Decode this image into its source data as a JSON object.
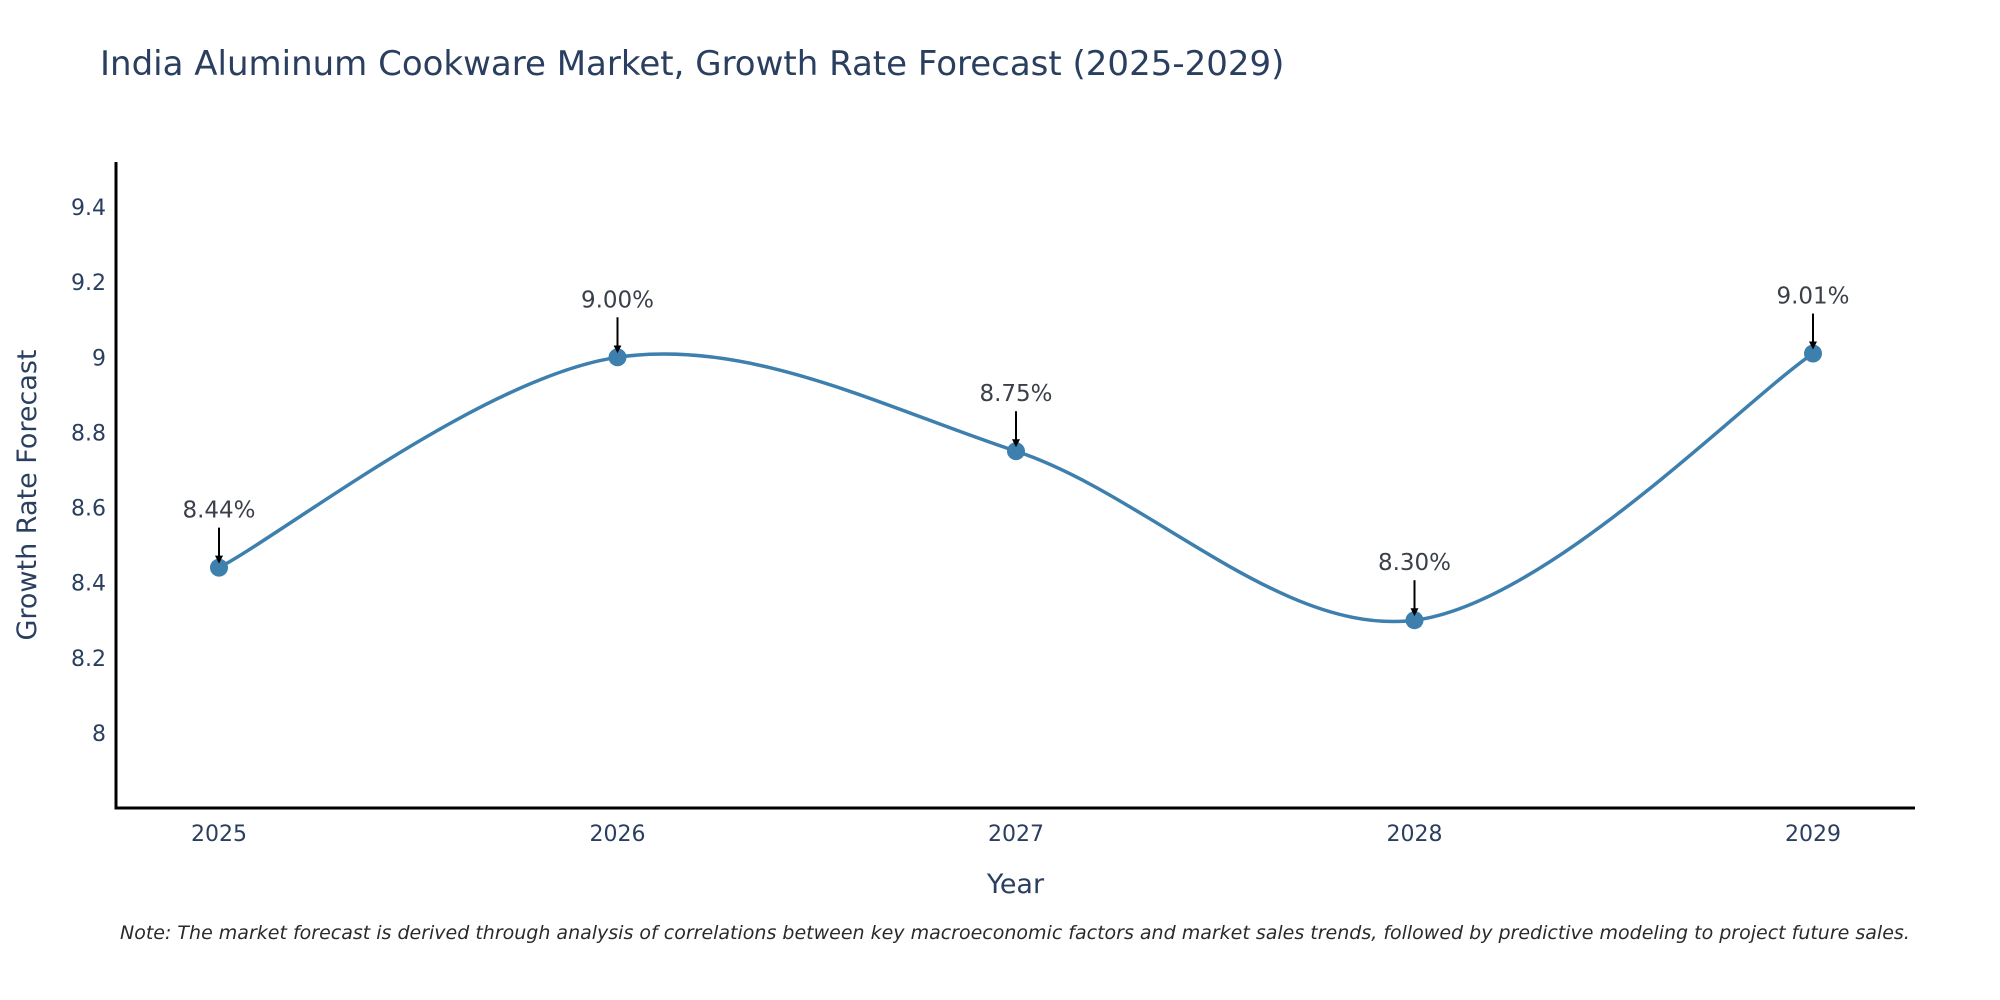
{
  "chart_data": {
    "type": "line",
    "title": "India Aluminum Cookware Market, Growth Rate Forecast (2025-2029)",
    "xlabel": "Year",
    "ylabel": "Growth Rate Forecast",
    "categories": [
      "2025",
      "2026",
      "2027",
      "2028",
      "2029"
    ],
    "values": [
      8.44,
      9.0,
      8.75,
      8.3,
      9.01
    ],
    "data_labels": [
      "8.44%",
      "9.00%",
      "8.75%",
      "8.30%",
      "9.01%"
    ],
    "y_ticks": [
      8,
      8.2,
      8.4,
      8.6,
      8.8,
      9,
      9.2,
      9.4
    ],
    "y_tick_labels": [
      "8",
      "8.2",
      "8.4",
      "8.6",
      "8.8",
      "9",
      "9.2",
      "9.4"
    ],
    "ylim": [
      7.8,
      9.52
    ],
    "grid": false,
    "line_shape": "spline",
    "line_color": "#3d7fad",
    "marker_color": "#3d7fad",
    "note": "Note: The market forecast is derived through analysis of correlations between key macroeconomic factors and market sales trends, followed by predictive modeling to project future sales."
  }
}
